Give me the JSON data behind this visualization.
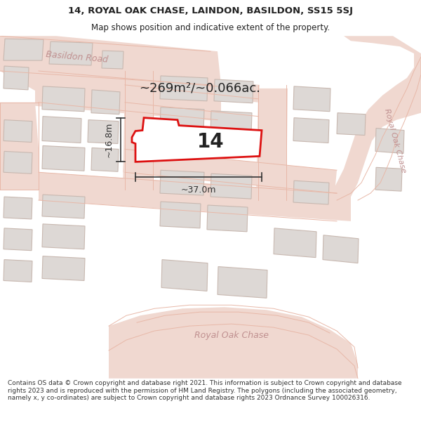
{
  "title_line1": "14, ROYAL OAK CHASE, LAINDON, BASILDON, SS15 5SJ",
  "title_line2": "Map shows position and indicative extent of the property.",
  "area_text": "~269m²/~0.066ac.",
  "plot_number": "14",
  "dim_width": "~37.0m",
  "dim_height": "~16.8m",
  "footer_text": "Contains OS data © Crown copyright and database right 2021. This information is subject to Crown copyright and database rights 2023 and is reproduced with the permission of HM Land Registry. The polygons (including the associated geometry, namely x, y co-ordinates) are subject to Crown copyright and database rights 2023 Ordnance Survey 100026316.",
  "map_bg": "#f7f3f0",
  "road_color": "#f0d8d0",
  "road_edge": "#e8b8a8",
  "building_fill": "#ddd8d5",
  "building_edge": "#c8b8b0",
  "plot_fill": "#ffffff",
  "plot_edge": "#dd1111",
  "road_label_color": "#c09090",
  "text_color": "#222222",
  "footer_color": "#333333",
  "white_bg": "#ffffff",
  "dim_color": "#333333"
}
